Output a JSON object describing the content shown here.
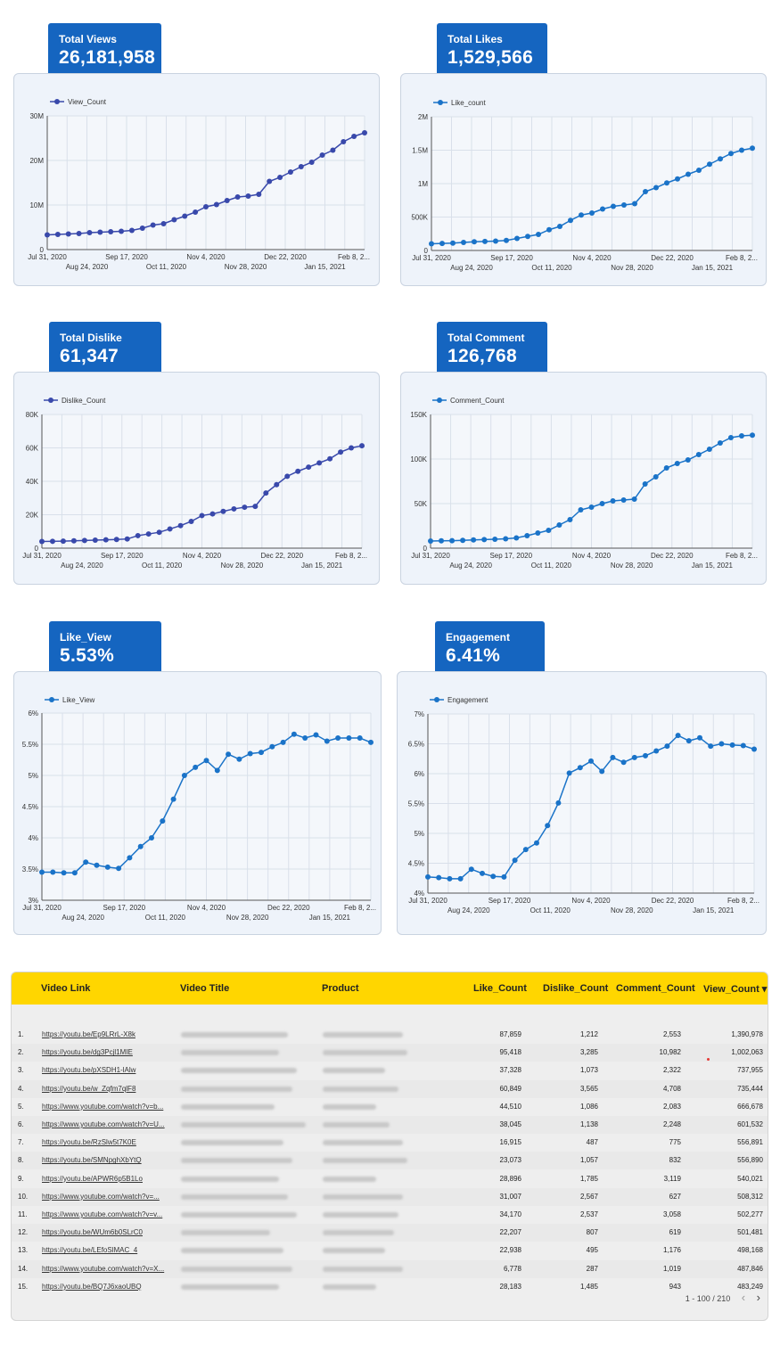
{
  "kpis": [
    {
      "label": "Total Views",
      "value": "26,181,958"
    },
    {
      "label": "Total Likes",
      "value": "1,529,566"
    },
    {
      "label": "Total Dislike",
      "value": "61,347"
    },
    {
      "label": "Total Comment",
      "value": "126,768"
    },
    {
      "label": "Like_View",
      "value": "5.53%"
    },
    {
      "label": "Engagement",
      "value": "6.41%"
    }
  ],
  "colors": {
    "kpi_bg": "#1565c0",
    "line_dark": "#3949ab",
    "line_blue": "#1a73c8",
    "table_header": "#ffd600",
    "card_bg": "#eef3fa"
  },
  "chart_data": [
    {
      "type": "line",
      "legend": "View_Count",
      "x_ticks_top": [
        "Jul 31, 2020",
        "Sep 17, 2020",
        "Nov 4, 2020",
        "Dec 22, 2020",
        "Feb 8, 2..."
      ],
      "x_ticks_bottom": [
        "Aug 24, 2020",
        "Oct 11, 2020",
        "Nov 28, 2020",
        "Jan 15, 2021"
      ],
      "y_ticks": [
        "0",
        "10M",
        "20M",
        "30M"
      ],
      "ylim": [
        0,
        30000000
      ],
      "values": [
        3300000,
        3400000,
        3500000,
        3600000,
        3800000,
        3900000,
        4000000,
        4100000,
        4300000,
        4800000,
        5500000,
        5800000,
        6700000,
        7500000,
        8400000,
        9600000,
        10100000,
        11000000,
        11800000,
        12000000,
        12400000,
        15300000,
        16200000,
        17400000,
        18600000,
        19600000,
        21200000,
        22300000,
        24200000,
        25400000,
        26200000
      ]
    },
    {
      "type": "line",
      "legend": "Like_count",
      "x_ticks_top": [
        "Jul 31, 2020",
        "Sep 17, 2020",
        "Nov 4, 2020",
        "Dec 22, 2020",
        "Feb 8, 2..."
      ],
      "x_ticks_bottom": [
        "Aug 24, 2020",
        "Oct 11, 2020",
        "Nov 28, 2020",
        "Jan 15, 2021"
      ],
      "y_ticks": [
        "0",
        "500K",
        "1M",
        "1.5M",
        "2M"
      ],
      "ylim": [
        0,
        2000000
      ],
      "values": [
        100000,
        105000,
        110000,
        120000,
        130000,
        135000,
        140000,
        150000,
        180000,
        210000,
        240000,
        310000,
        360000,
        450000,
        530000,
        560000,
        620000,
        660000,
        680000,
        700000,
        880000,
        940000,
        1010000,
        1070000,
        1140000,
        1200000,
        1290000,
        1370000,
        1450000,
        1500000,
        1530000
      ]
    },
    {
      "type": "line",
      "legend": "Dislike_Count",
      "x_ticks_top": [
        "Jul 31, 2020",
        "Sep 17, 2020",
        "Nov 4, 2020",
        "Dec 22, 2020",
        "Feb 8, 2..."
      ],
      "x_ticks_bottom": [
        "Aug 24, 2020",
        "Oct 11, 2020",
        "Nov 28, 2020",
        "Jan 15, 2021"
      ],
      "y_ticks": [
        "0",
        "20K",
        "40K",
        "60K",
        "80K"
      ],
      "ylim": [
        0,
        80000
      ],
      "values": [
        4000,
        4100,
        4200,
        4400,
        4600,
        4800,
        5000,
        5200,
        5500,
        7500,
        8500,
        9500,
        11500,
        13500,
        16000,
        19500,
        20500,
        22000,
        23500,
        24500,
        25000,
        33000,
        38000,
        43000,
        46000,
        48500,
        51000,
        53500,
        57500,
        60000,
        61300
      ]
    },
    {
      "type": "line",
      "legend": "Comment_Count",
      "x_ticks_top": [
        "Jul 31, 2020",
        "Sep 17, 2020",
        "Nov 4, 2020",
        "Dec 22, 2020",
        "Feb 8, 2..."
      ],
      "x_ticks_bottom": [
        "Aug 24, 2020",
        "Oct 11, 2020",
        "Nov 28, 2020",
        "Jan 15, 2021"
      ],
      "y_ticks": [
        "0",
        "50K",
        "100K",
        "150K"
      ],
      "ylim": [
        0,
        150000
      ],
      "values": [
        8000,
        8200,
        8400,
        8800,
        9200,
        9600,
        10000,
        10500,
        11500,
        14000,
        17000,
        20000,
        26000,
        32000,
        43000,
        46000,
        50000,
        53000,
        54000,
        55000,
        72000,
        80000,
        90000,
        95000,
        99000,
        105000,
        111000,
        118000,
        124000,
        126000,
        126800
      ]
    },
    {
      "type": "line",
      "legend": "Like_View",
      "x_ticks_top": [
        "Jul 31, 2020",
        "Sep 17, 2020",
        "Nov 4, 2020",
        "Dec 22, 2020",
        "Feb 8, 2..."
      ],
      "x_ticks_bottom": [
        "Aug 24, 2020",
        "Oct 11, 2020",
        "Nov 28, 2020",
        "Jan 15, 2021"
      ],
      "y_ticks": [
        "3%",
        "3.5%",
        "4%",
        "4.5%",
        "5%",
        "5.5%",
        "6%"
      ],
      "ylim": [
        3,
        6
      ],
      "values": [
        3.45,
        3.45,
        3.44,
        3.44,
        3.61,
        3.56,
        3.53,
        3.51,
        3.68,
        3.86,
        4.0,
        4.27,
        4.62,
        5.0,
        5.13,
        5.24,
        5.08,
        5.34,
        5.26,
        5.35,
        5.37,
        5.46,
        5.53,
        5.66,
        5.6,
        5.65,
        5.55,
        5.6,
        5.6,
        5.6,
        5.53
      ]
    },
    {
      "type": "line",
      "legend": "Engagement",
      "x_ticks_top": [
        "Jul 31, 2020",
        "Sep 17, 2020",
        "Nov 4, 2020",
        "Dec 22, 2020",
        "Feb 8, 2..."
      ],
      "x_ticks_bottom": [
        "Aug 24, 2020",
        "Oct 11, 2020",
        "Nov 28, 2020",
        "Jan 15, 2021"
      ],
      "y_ticks": [
        "4%",
        "4.5%",
        "5%",
        "5.5%",
        "6%",
        "6.5%",
        "7%"
      ],
      "ylim": [
        4,
        7
      ],
      "values": [
        4.27,
        4.26,
        4.24,
        4.24,
        4.4,
        4.33,
        4.28,
        4.27,
        4.55,
        4.73,
        4.84,
        5.13,
        5.51,
        6.01,
        6.1,
        6.21,
        6.04,
        6.27,
        6.19,
        6.27,
        6.3,
        6.38,
        6.46,
        6.64,
        6.55,
        6.6,
        6.46,
        6.5,
        6.48,
        6.47,
        6.41
      ]
    }
  ],
  "table": {
    "headers": {
      "link": "Video Link",
      "title": "Video Title",
      "product": "Product",
      "like": "Like_Count",
      "dislike": "Dislike_Count",
      "comment": "Comment_Count",
      "view": "View_Count ▾"
    },
    "rows": [
      {
        "idx": "1.",
        "link": "https://youtu.be/Ep9LRrL-X8k",
        "like": "87,859",
        "dislike": "1,212",
        "comment": "2,553",
        "view": "1,390,978"
      },
      {
        "idx": "2.",
        "link": "https://youtu.be/dg3Pcjl1MIE",
        "like": "95,418",
        "dislike": "3,285",
        "comment": "10,982",
        "view": "1,002,063"
      },
      {
        "idx": "3.",
        "link": "https://youtu.be/pXSDH1-lAlw",
        "like": "37,328",
        "dislike": "1,073",
        "comment": "2,322",
        "view": "737,955"
      },
      {
        "idx": "4.",
        "link": "https://youtu.be/w_Zqfm7qlF8",
        "like": "60,849",
        "dislike": "3,565",
        "comment": "4,708",
        "view": "735,444"
      },
      {
        "idx": "5.",
        "link": "https://www.youtube.com/watch?v=b...",
        "like": "44,510",
        "dislike": "1,086",
        "comment": "2,083",
        "view": "666,678"
      },
      {
        "idx": "6.",
        "link": "https://www.youtube.com/watch?v=U...",
        "like": "38,045",
        "dislike": "1,138",
        "comment": "2,248",
        "view": "601,532"
      },
      {
        "idx": "7.",
        "link": "https://youtu.be/RzSlw5t7K0E",
        "like": "16,915",
        "dislike": "487",
        "comment": "775",
        "view": "556,891"
      },
      {
        "idx": "8.",
        "link": "https://youtu.be/SMNpghXbYtQ",
        "like": "23,073",
        "dislike": "1,057",
        "comment": "832",
        "view": "556,890"
      },
      {
        "idx": "9.",
        "link": "https://youtu.be/APWR6p5B1Lo",
        "like": "28,896",
        "dislike": "1,785",
        "comment": "3,119",
        "view": "540,021"
      },
      {
        "idx": "10.",
        "link": "https://www.youtube.com/watch?v=...",
        "like": "31,007",
        "dislike": "2,567",
        "comment": "627",
        "view": "508,312"
      },
      {
        "idx": "11.",
        "link": "https://www.youtube.com/watch?v=v...",
        "like": "34,170",
        "dislike": "2,537",
        "comment": "3,058",
        "view": "502,277"
      },
      {
        "idx": "12.",
        "link": "https://youtu.be/WUm6b0SLrC0",
        "like": "22,207",
        "dislike": "807",
        "comment": "619",
        "view": "501,481"
      },
      {
        "idx": "13.",
        "link": "https://youtu.be/LEfoSlMAC_4",
        "like": "22,938",
        "dislike": "495",
        "comment": "1,176",
        "view": "498,168"
      },
      {
        "idx": "14.",
        "link": "https://www.youtube.com/watch?v=X...",
        "like": "6,778",
        "dislike": "287",
        "comment": "1,019",
        "view": "487,846"
      },
      {
        "idx": "15.",
        "link": "https://youtu.be/BQ7J6xaoUBQ",
        "like": "28,183",
        "dislike": "1,485",
        "comment": "943",
        "view": "483,249"
      }
    ],
    "pagination": "1 - 100 / 210",
    "prev": "‹",
    "next": "›"
  }
}
